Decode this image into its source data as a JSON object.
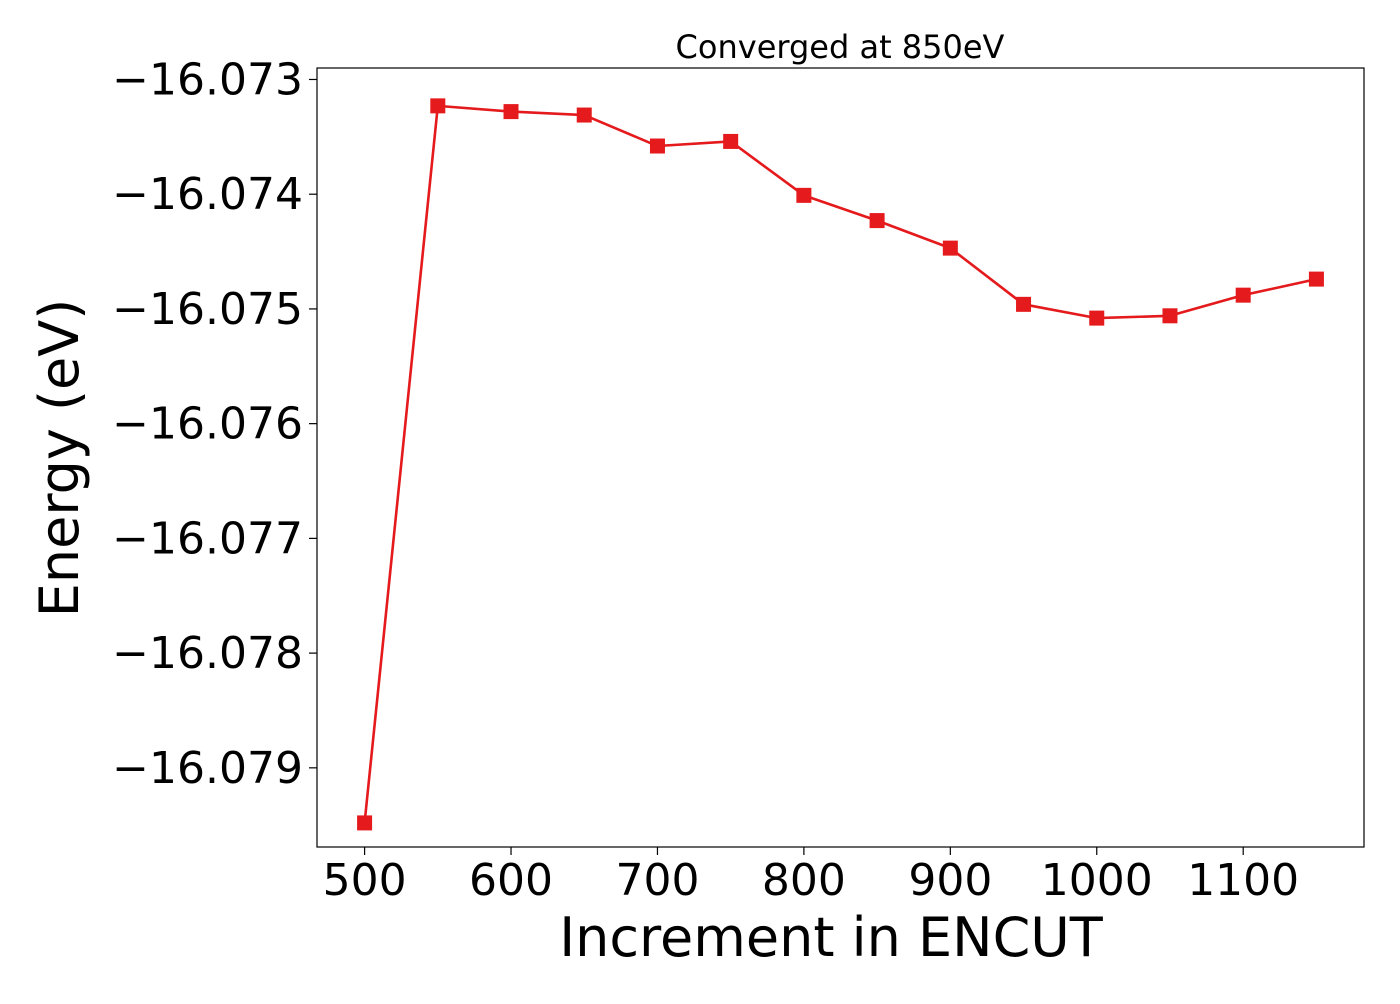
{
  "chart_data": {
    "type": "line",
    "title": "Converged at 850eV",
    "xlabel": "Increment in ENCUT",
    "ylabel": "Energy (eV)",
    "xlim": [
      467.5,
      1182.5
    ],
    "ylim": [
      -16.07969,
      -16.0729
    ],
    "x_ticks": [
      500,
      600,
      700,
      800,
      900,
      1000,
      1100
    ],
    "x_tick_labels": [
      "500",
      "600",
      "700",
      "800",
      "900",
      "1000",
      "1100"
    ],
    "y_ticks": [
      -16.073,
      -16.074,
      -16.075,
      -16.076,
      -16.077,
      -16.078,
      -16.079
    ],
    "y_tick_labels": [
      "−16.073",
      "−16.074",
      "−16.075",
      "−16.076",
      "−16.077",
      "−16.078",
      "−16.079"
    ],
    "grid": false,
    "legend": "none",
    "series": [
      {
        "color": "#e41a1c",
        "marker": "square",
        "x": [
          500,
          550,
          600,
          650,
          700,
          750,
          800,
          850,
          900,
          950,
          1000,
          1050,
          1100,
          1150
        ],
        "y": [
          -16.07948,
          -16.07323,
          -16.07328,
          -16.07331,
          -16.07358,
          -16.07354,
          -16.07401,
          -16.07423,
          -16.07447,
          -16.07496,
          -16.07508,
          -16.07506,
          -16.07488,
          -16.07474
        ]
      }
    ]
  }
}
